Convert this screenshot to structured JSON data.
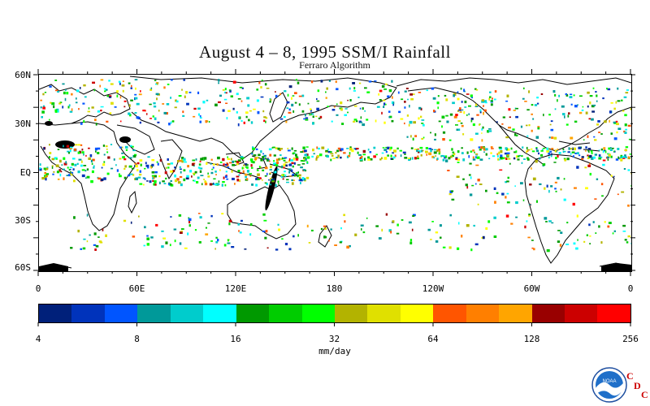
{
  "title": "August 4 – 8, 1995 SSM/I Rainfall",
  "subtitle": "Ferraro Algorithm",
  "lat_labels": [
    "60N",
    "30N",
    "EQ",
    "30S",
    "60S"
  ],
  "lon_labels": [
    "0",
    "60E",
    "120E",
    "180",
    "120W",
    "60W",
    "0"
  ],
  "colorbar": {
    "colors": [
      "#00207a",
      "#0033bb",
      "#0055ff",
      "#009999",
      "#00cccc",
      "#00ffff",
      "#009900",
      "#00cc00",
      "#00ff00",
      "#b3b300",
      "#e0e000",
      "#ffff00",
      "#ff5500",
      "#ff7f00",
      "#ffa500",
      "#990000",
      "#cc0000",
      "#ff0000"
    ],
    "tick_labels": [
      "4",
      "8",
      "16",
      "32",
      "64",
      "128",
      "256"
    ]
  },
  "units": "mm/day",
  "logo": {
    "name": "NOAA",
    "letters": [
      "C",
      "D",
      "C"
    ]
  }
}
